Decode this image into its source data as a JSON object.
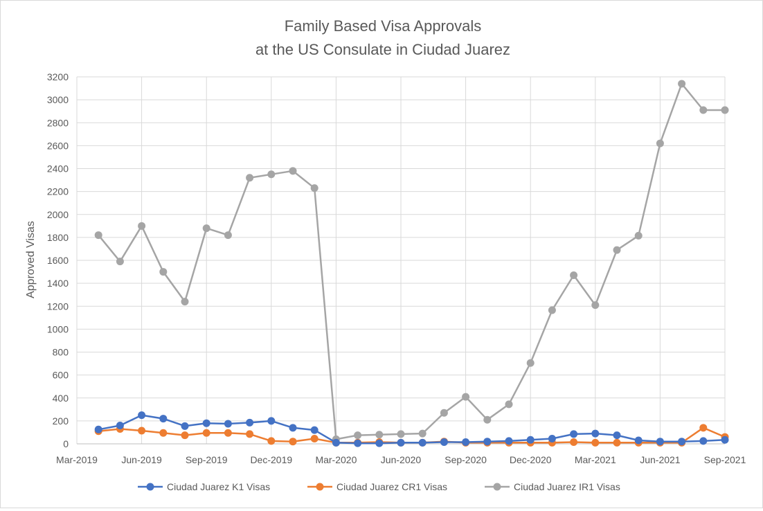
{
  "chart_data": {
    "type": "line",
    "title_lines": [
      "Family Based Visa Approvals",
      "at the US Consulate in Ciudad Juarez"
    ],
    "xlabel": "",
    "ylabel": "Approved Visas",
    "ylim": [
      0,
      3200
    ],
    "yticks": [
      0,
      200,
      400,
      600,
      800,
      1000,
      1200,
      1400,
      1600,
      1800,
      2000,
      2200,
      2400,
      2600,
      2800,
      3000,
      3200
    ],
    "xlim": [
      "2019-03",
      "2021-09"
    ],
    "xticks": [
      {
        "month": "2019-03",
        "label": "Mar-2019"
      },
      {
        "month": "2019-06",
        "label": "Jun-2019"
      },
      {
        "month": "2019-09",
        "label": "Sep-2019"
      },
      {
        "month": "2019-12",
        "label": "Dec-2019"
      },
      {
        "month": "2020-03",
        "label": "Mar-2020"
      },
      {
        "month": "2020-06",
        "label": "Jun-2020"
      },
      {
        "month": "2020-09",
        "label": "Sep-2020"
      },
      {
        "month": "2020-12",
        "label": "Dec-2020"
      },
      {
        "month": "2021-03",
        "label": "Mar-2021"
      },
      {
        "month": "2021-06",
        "label": "Jun-2021"
      },
      {
        "month": "2021-09",
        "label": "Sep-2021"
      }
    ],
    "grid": true,
    "legend_position": "bottom",
    "x": [
      "2019-04",
      "2019-05",
      "2019-06",
      "2019-07",
      "2019-08",
      "2019-09",
      "2019-10",
      "2019-11",
      "2019-12",
      "2020-01",
      "2020-02",
      "2020-03",
      "2020-04",
      "2020-05",
      "2020-06",
      "2020-07",
      "2020-08",
      "2020-09",
      "2020-10",
      "2020-11",
      "2020-12",
      "2021-01",
      "2021-02",
      "2021-03",
      "2021-04",
      "2021-05",
      "2021-06",
      "2021-07",
      "2021-08",
      "2021-09"
    ],
    "series": [
      {
        "name": "Ciudad Juarez K1 Visas",
        "color": "#4472c4",
        "values": [
          125,
          160,
          250,
          220,
          155,
          180,
          175,
          185,
          200,
          140,
          120,
          10,
          5,
          5,
          10,
          10,
          15,
          15,
          20,
          25,
          35,
          45,
          85,
          90,
          75,
          30,
          20,
          20,
          25,
          35
        ]
      },
      {
        "name": "Ciudad Juarez CR1 Visas",
        "color": "#ed7d31",
        "values": [
          110,
          130,
          115,
          95,
          75,
          95,
          95,
          85,
          25,
          20,
          45,
          10,
          10,
          15,
          10,
          10,
          20,
          10,
          10,
          10,
          10,
          10,
          15,
          10,
          10,
          10,
          10,
          10,
          140,
          60
        ]
      },
      {
        "name": "Ciudad Juarez IR1 Visas",
        "color": "#a5a5a5",
        "values": [
          1820,
          1590,
          1900,
          1500,
          1240,
          1880,
          1820,
          2320,
          2350,
          2380,
          2230,
          40,
          75,
          80,
          85,
          90,
          270,
          410,
          210,
          345,
          705,
          1165,
          1470,
          1210,
          1690,
          1815,
          2620,
          3140,
          2910,
          2910
        ]
      }
    ]
  }
}
